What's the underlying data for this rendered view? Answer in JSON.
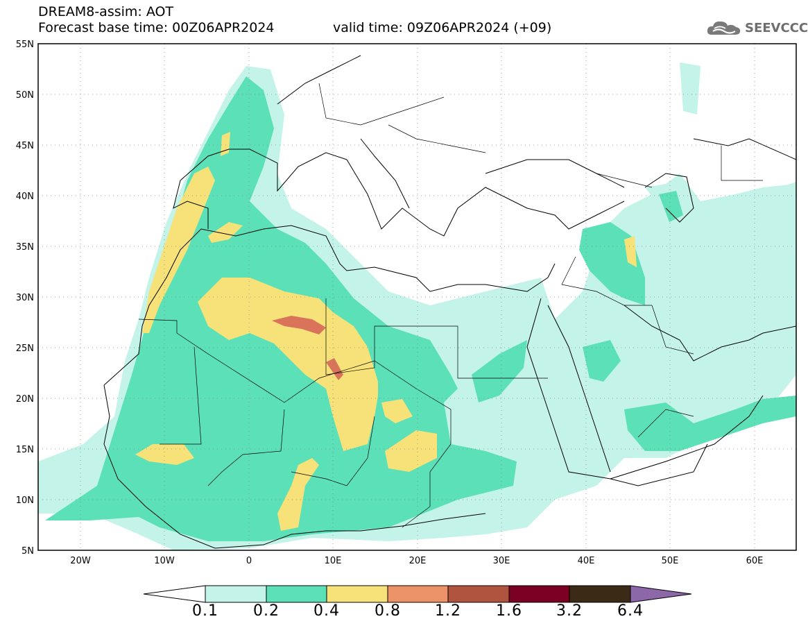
{
  "header": {
    "title": "DREAM8-assim: AOT",
    "base_time": "Forecast base time: 00Z06APR2024",
    "valid_time": "valid time: 09Z06APR2024 (+09)"
  },
  "logo": {
    "text": "SEEVCCC",
    "icon": "cloud-logo-icon"
  },
  "axes": {
    "lat_labels": [
      "55N",
      "50N",
      "45N",
      "40N",
      "35N",
      "30N",
      "25N",
      "20N",
      "15N",
      "10N",
      "5N"
    ],
    "lon_labels": [
      "20W",
      "10W",
      "0",
      "10E",
      "20E",
      "30E",
      "40E",
      "50E",
      "60E"
    ],
    "lat_range": [
      5,
      55
    ],
    "lon_range": [
      -25,
      65
    ]
  },
  "colorbar": {
    "labels": [
      "0.1",
      "0.2",
      "0.4",
      "0.8",
      "1.2",
      "1.6",
      "3.2",
      "6.4"
    ],
    "colors": [
      "#ffffff",
      "#c4f3ea",
      "#5ce0b8",
      "#f7e27a",
      "#eb9269",
      "#b05440",
      "#7a0024",
      "#3a2a16",
      "#8c68a8"
    ]
  },
  "colors": {
    "level_0_1": "#c4f3ea",
    "level_0_2": "#5ce0b8",
    "level_0_4": "#f7e27a",
    "level_0_8": "#eb9269",
    "level_1_2": "#b05440"
  }
}
